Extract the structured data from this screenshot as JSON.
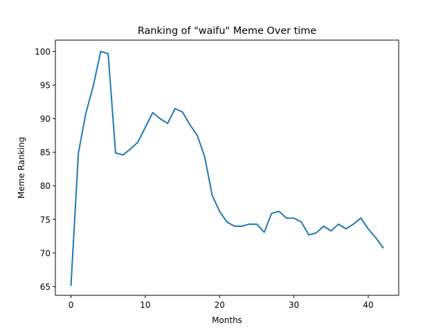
{
  "chart_data": {
    "type": "line",
    "title": "Ranking of \"waifu\" Meme Over time",
    "xlabel": "Months",
    "ylabel": "Meme Ranking",
    "xlim": [
      -2.1,
      44.1
    ],
    "ylim": [
      63.7,
      101.7
    ],
    "xticks": [
      0,
      10,
      20,
      30,
      40
    ],
    "yticks": [
      65,
      70,
      75,
      80,
      85,
      90,
      95,
      100
    ],
    "grid": false,
    "line_color": "#1f77b4",
    "series": [
      {
        "x": [
          0,
          1,
          2,
          3,
          4,
          5,
          6,
          7,
          8,
          9,
          10,
          11,
          12,
          13,
          14,
          15,
          16,
          17,
          18,
          19,
          20,
          21,
          22,
          23,
          24,
          25,
          26,
          27,
          28,
          29,
          30,
          31,
          32,
          33,
          34,
          35,
          36,
          37,
          38,
          39,
          40,
          41,
          42
        ],
        "values": [
          65.2,
          84.9,
          90.8,
          94.9,
          100.0,
          99.7,
          84.9,
          84.6,
          85.5,
          86.5,
          88.7,
          90.9,
          90.0,
          89.3,
          91.5,
          91.0,
          89.1,
          87.5,
          84.3,
          78.6,
          76.2,
          74.6,
          74.0,
          74.0,
          74.3,
          74.3,
          73.1,
          75.9,
          76.2,
          75.2,
          75.2,
          74.6,
          72.7,
          73.0,
          74.0,
          73.3,
          74.3,
          73.6,
          74.3,
          75.2,
          73.6,
          72.3,
          70.8
        ]
      }
    ]
  }
}
